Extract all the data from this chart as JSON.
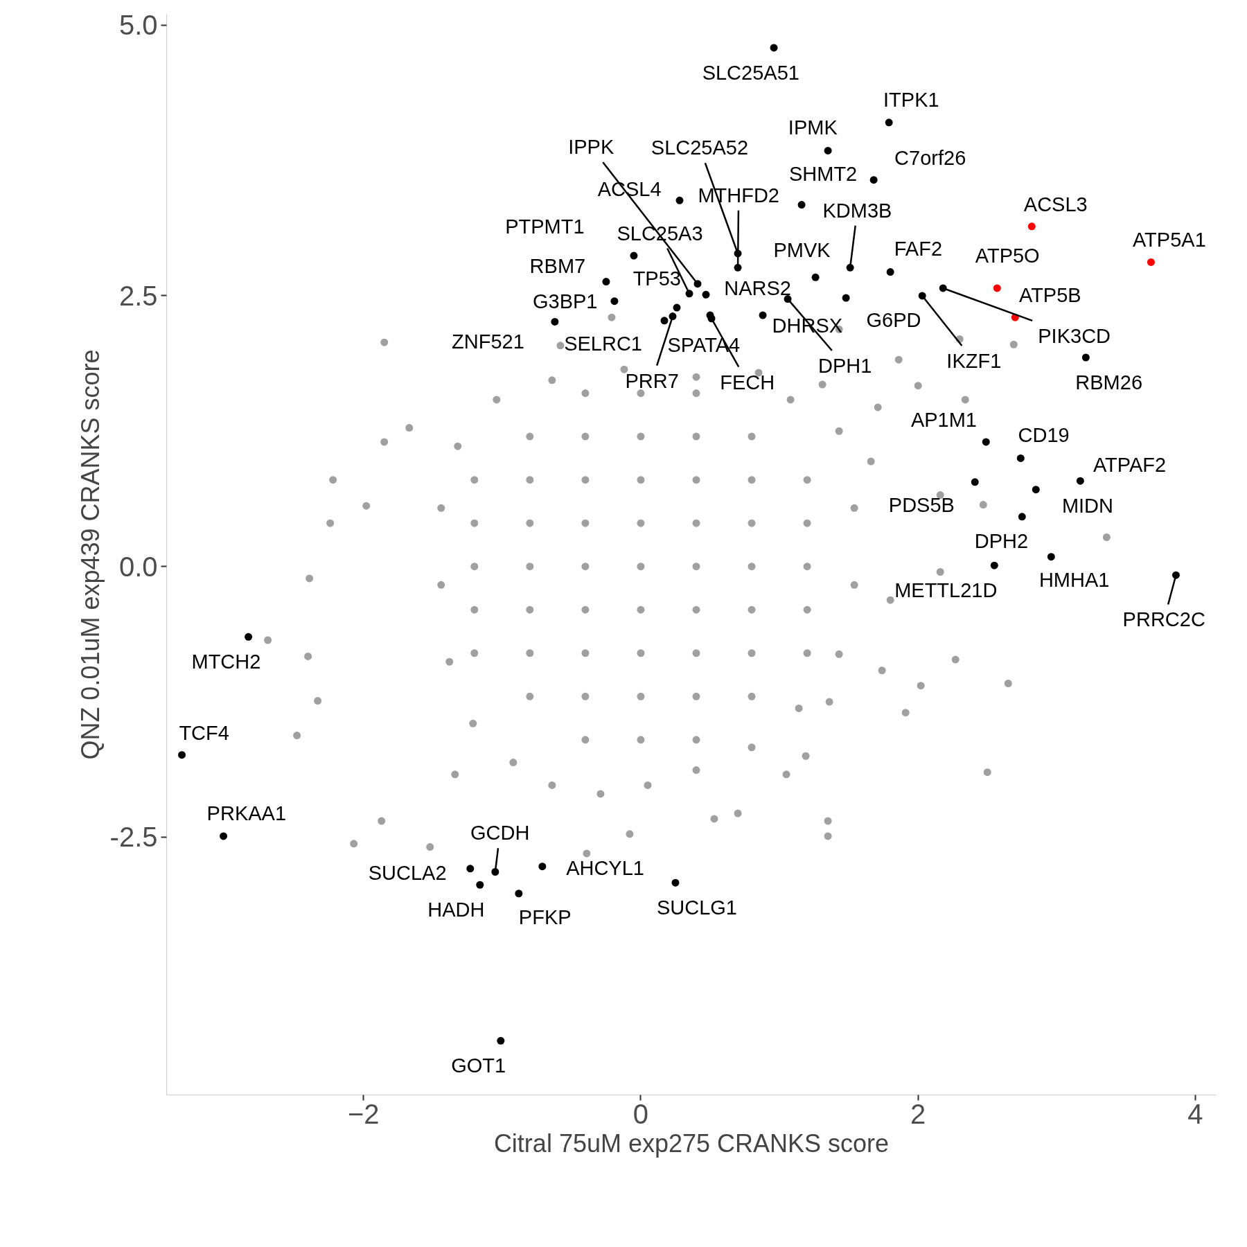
{
  "chart_data": {
    "type": "scatter",
    "xlabel": "Citral 75uM exp275 CRANKS score",
    "ylabel": "QNZ 0.01uM exp439 CRANKS score",
    "xlim": [
      -3.42,
      4.15
    ],
    "ylim": [
      -4.88,
      5.1
    ],
    "xticks": [
      -2,
      0,
      2,
      4
    ],
    "yticks": [
      {
        "value": -2.5,
        "label": "-2.5"
      },
      {
        "value": 0,
        "label": "0.0"
      },
      {
        "value": 2.5,
        "label": "2.5"
      },
      {
        "value": 5,
        "label": "5.0"
      }
    ],
    "grid": false,
    "marker": "circle",
    "series": [
      {
        "color": "#a0a0a0",
        "x": [
          -1.85,
          -2.39,
          -2.48,
          -2.33,
          -2.4,
          -2.69,
          -2.22,
          -2.24,
          -2.07,
          -1.87,
          -1.52,
          -1.34,
          -1.67,
          -1.85,
          -1.98,
          3.36,
          2.65,
          2.5,
          2.27,
          2.02,
          1.91,
          2.47,
          2.16,
          2.16,
          2.34,
          2.0,
          2.3,
          2.69,
          1.86,
          1.43,
          -0.21,
          -0.58,
          -0.39,
          -0.08,
          0.53,
          0.7,
          1.05,
          1.35,
          1.35,
          1.19,
          1.36,
          1.74,
          1.8,
          1.66,
          1.71,
          1.31,
          0.85,
          0.4,
          -0.12,
          -0.64,
          -1.04,
          -1.32,
          -1.44,
          -1.44,
          -1.38,
          -1.21,
          -0.92,
          -0.64,
          -0.29,
          0.05,
          0.4,
          0.8,
          1.14,
          1.43,
          1.54,
          1.54,
          1.43,
          1.08,
          -1.2,
          -1.2,
          -1.2,
          -1.2,
          -1.2,
          -0.8,
          -0.8,
          -0.8,
          -0.8,
          -0.8,
          -0.8,
          -0.8,
          -0.4,
          -0.4,
          -0.4,
          -0.4,
          -0.4,
          -0.4,
          -0.4,
          -0.4,
          -0.4,
          0,
          0,
          0,
          0,
          0,
          0,
          0,
          0,
          0,
          0.4,
          0.4,
          0.4,
          0.4,
          0.4,
          0.4,
          0.4,
          0.4,
          0.4,
          0.8,
          0.8,
          0.8,
          0.8,
          0.8,
          0.8,
          0.8,
          1.2,
          1.2,
          1.2,
          1.2,
          1.2
        ],
        "values": [
          2.07,
          -0.11,
          -1.56,
          -1.24,
          -0.83,
          -0.68,
          0.8,
          0.4,
          -2.56,
          -2.35,
          -2.59,
          -1.92,
          1.28,
          1.15,
          0.56,
          0.27,
          -1.08,
          -1.9,
          -0.86,
          -1.1,
          -1.35,
          0.57,
          -0.05,
          0.66,
          1.54,
          1.67,
          2.1,
          2.05,
          1.91,
          2.19,
          2.3,
          2.04,
          -2.65,
          -2.47,
          -2.33,
          -2.28,
          -1.92,
          -2.35,
          -2.49,
          -1.75,
          -1.25,
          -0.96,
          -0.31,
          0.97,
          1.47,
          1.68,
          1.79,
          1.75,
          1.82,
          1.72,
          1.54,
          1.11,
          0.54,
          -0.17,
          -0.88,
          -1.45,
          -1.81,
          -2.02,
          -2.1,
          -2.02,
          -1.88,
          -1.67,
          -1.31,
          -0.81,
          -0.17,
          0.54,
          1.25,
          1.54,
          -0.8,
          -0.4,
          0,
          0.4,
          0.8,
          -1.2,
          -0.8,
          -0.4,
          0,
          0.4,
          0.8,
          1.2,
          -1.6,
          -1.2,
          -0.8,
          -0.4,
          0,
          0.4,
          0.8,
          1.2,
          1.6,
          -1.6,
          -1.2,
          -0.8,
          -0.4,
          0,
          0.4,
          0.8,
          1.2,
          1.6,
          -1.6,
          -1.2,
          -0.8,
          -0.4,
          0,
          0.4,
          0.8,
          1.2,
          1.6,
          -1.2,
          -0.8,
          -0.4,
          0,
          0.4,
          0.8,
          1.2,
          -0.8,
          -0.4,
          0,
          0.4,
          0.8
        ]
      },
      {
        "color": "#000000",
        "x": [
          0.96,
          1.79,
          1.35,
          1.68,
          1.16,
          0.28,
          0.7,
          0.7,
          -0.05,
          0.41,
          0.35,
          0.26,
          0.47,
          -0.25,
          -0.19,
          -0.62,
          0.17,
          0.5,
          0.51,
          0.23,
          0.88,
          1.26,
          1.06,
          1.51,
          1.48,
          1.8,
          2.03,
          2.18,
          3.21,
          2.49,
          2.74,
          3.17,
          2.41,
          2.85,
          2.75,
          2.96,
          2.55,
          3.86,
          -2.83,
          -3.31,
          -3.01,
          -1.05,
          -1.23,
          -1.16,
          -0.88,
          -0.71,
          0.25,
          -1.01
        ],
        "values": [
          4.79,
          4.1,
          3.84,
          3.57,
          3.34,
          3.38,
          2.89,
          2.76,
          2.87,
          2.61,
          2.52,
          2.39,
          2.51,
          2.63,
          2.45,
          2.26,
          2.27,
          2.32,
          2.29,
          2.31,
          2.32,
          2.67,
          2.47,
          2.76,
          2.48,
          2.72,
          2.5,
          2.57,
          1.93,
          1.15,
          1.0,
          0.79,
          0.78,
          0.71,
          0.46,
          0.09,
          0.01,
          -0.08,
          -0.65,
          -1.74,
          -2.49,
          -2.82,
          -2.79,
          -2.94,
          -3.02,
          -2.77,
          -2.92,
          -4.38
        ]
      },
      {
        "color": "#ff0000",
        "x": [
          2.82,
          3.68,
          2.57,
          2.7
        ],
        "values": [
          3.14,
          2.81,
          2.57,
          2.3
        ]
      }
    ],
    "annotations": [
      {
        "text": "SLC25A51",
        "x": 0.96,
        "y": 4.79
      },
      {
        "text": "ITPK1",
        "x": 1.79,
        "y": 4.1
      },
      {
        "text": "IPMK",
        "x": 1.35,
        "y": 3.84
      },
      {
        "text": "C7orf26",
        "x": 1.68,
        "y": 3.57
      },
      {
        "text": "SHMT2",
        "x": 1.16,
        "y": 3.34
      },
      {
        "text": "ACSL4",
        "x": 0.28,
        "y": 3.38
      },
      {
        "text": "SLC25A52",
        "x": 0.7,
        "y": 2.89
      },
      {
        "text": "MTHFD2",
        "x": 0.7,
        "y": 2.76
      },
      {
        "text": "PTPMT1",
        "x": -0.05,
        "y": 2.87
      },
      {
        "text": "IPPK",
        "x": 0.41,
        "y": 2.61
      },
      {
        "text": "SLC25A3",
        "x": 0.35,
        "y": 2.52
      },
      {
        "text": "TP53",
        "x": 0.26,
        "y": 2.39
      },
      {
        "text": "NARS2",
        "x": 0.47,
        "y": 2.51
      },
      {
        "text": "RBM7",
        "x": -0.25,
        "y": 2.63
      },
      {
        "text": "G3BP1",
        "x": -0.19,
        "y": 2.45
      },
      {
        "text": "ZNF521",
        "x": -0.62,
        "y": 2.26
      },
      {
        "text": "SELRC1",
        "x": 0.17,
        "y": 2.27
      },
      {
        "text": "SPATA4",
        "x": 0.5,
        "y": 2.32
      },
      {
        "text": "FECH",
        "x": 0.51,
        "y": 2.29
      },
      {
        "text": "PRR7",
        "x": 0.23,
        "y": 2.31
      },
      {
        "text": "DHRSX",
        "x": 0.88,
        "y": 2.32
      },
      {
        "text": "PMVK",
        "x": 1.26,
        "y": 2.67
      },
      {
        "text": "DPH1",
        "x": 1.06,
        "y": 2.47
      },
      {
        "text": "KDM3B",
        "x": 1.51,
        "y": 2.76
      },
      {
        "text": "G6PD",
        "x": 1.48,
        "y": 2.48
      },
      {
        "text": "FAF2",
        "x": 1.8,
        "y": 2.72
      },
      {
        "text": "IKZF1",
        "x": 2.03,
        "y": 2.5
      },
      {
        "text": "PIK3CD",
        "x": 2.18,
        "y": 2.57
      },
      {
        "text": "RBM26",
        "x": 3.21,
        "y": 1.93
      },
      {
        "text": "AP1M1",
        "x": 2.49,
        "y": 1.15
      },
      {
        "text": "CD19",
        "x": 2.74,
        "y": 1.0
      },
      {
        "text": "ATPAF2",
        "x": 3.17,
        "y": 0.79
      },
      {
        "text": "PDS5B",
        "x": 2.41,
        "y": 0.78
      },
      {
        "text": "MIDN",
        "x": 2.85,
        "y": 0.71
      },
      {
        "text": "DPH2",
        "x": 2.75,
        "y": 0.46
      },
      {
        "text": "HMHA1",
        "x": 2.96,
        "y": 0.09
      },
      {
        "text": "METTL21D",
        "x": 2.55,
        "y": 0.01
      },
      {
        "text": "PRRC2C",
        "x": 3.86,
        "y": -0.08
      },
      {
        "text": "MTCH2",
        "x": -2.83,
        "y": -0.65
      },
      {
        "text": "TCF4",
        "x": -3.31,
        "y": -1.74
      },
      {
        "text": "PRKAA1",
        "x": -3.01,
        "y": -2.49
      },
      {
        "text": "GCDH",
        "x": -1.05,
        "y": -2.82
      },
      {
        "text": "SUCLA2",
        "x": -1.23,
        "y": -2.79
      },
      {
        "text": "HADH",
        "x": -1.16,
        "y": -2.94
      },
      {
        "text": "PFKP",
        "x": -0.88,
        "y": -3.02
      },
      {
        "text": "AHCYL1",
        "x": -0.71,
        "y": -2.77
      },
      {
        "text": "SUCLG1",
        "x": 0.25,
        "y": -2.92
      },
      {
        "text": "GOT1",
        "x": -1.01,
        "y": -4.38
      },
      {
        "text": "ACSL3",
        "x": 2.82,
        "y": 3.14
      },
      {
        "text": "ATP5A1",
        "x": 3.68,
        "y": 2.81
      },
      {
        "text": "ATP5O",
        "x": 2.57,
        "y": 2.57
      },
      {
        "text": "ATP5B",
        "x": 2.7,
        "y": 2.3
      }
    ]
  }
}
